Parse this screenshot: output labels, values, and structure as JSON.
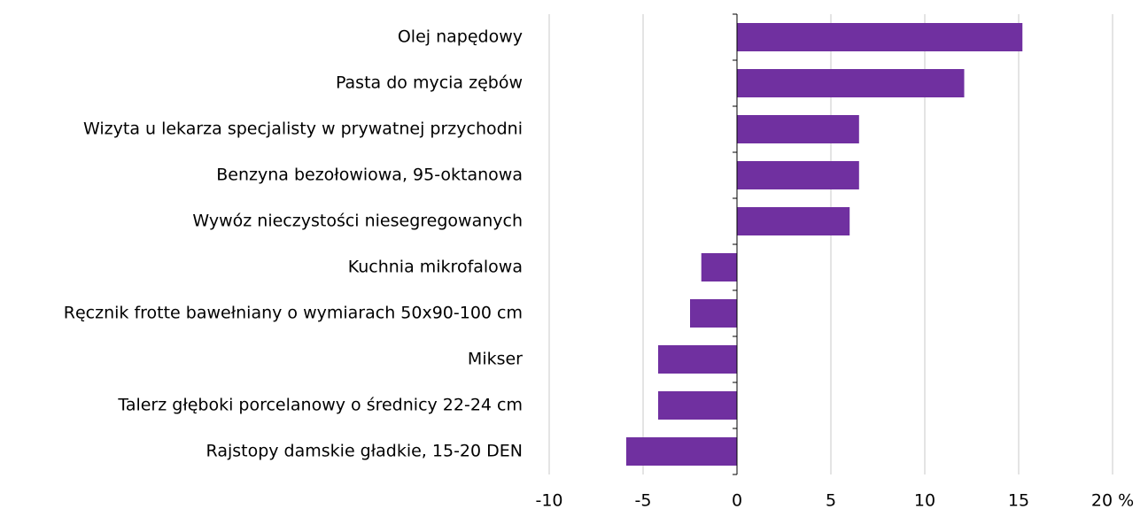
{
  "chart_data": {
    "type": "bar",
    "orientation": "horizontal",
    "categories": [
      "Olej napędowy",
      "Pasta do mycia zębów",
      "Wizyta u lekarza specjalisty w prywatnej przychodni ",
      "Benzyna bezołowiowa, 95-oktanowa",
      "Wywóz nieczystości niesegregowanych",
      "Kuchnia mikrofalowa",
      "Ręcznik frotte bawełniany o wymiarach 50x90-100 cm",
      "Mikser",
      "Talerz głęboki porcelanowy o średnicy 22-24 cm",
      "Rajstopy damskie gładkie, 15-20 DEN"
    ],
    "values": [
      15.2,
      12.1,
      6.5,
      6.5,
      6.0,
      -1.9,
      -2.5,
      -4.2,
      -4.2,
      -5.9
    ],
    "color": "#7030a0",
    "xlim": [
      -10,
      20
    ],
    "xticks": [
      -10,
      -5,
      0,
      5,
      10,
      15,
      {
        "value": 20,
        "label": "20 %"
      }
    ],
    "grid": true
  }
}
